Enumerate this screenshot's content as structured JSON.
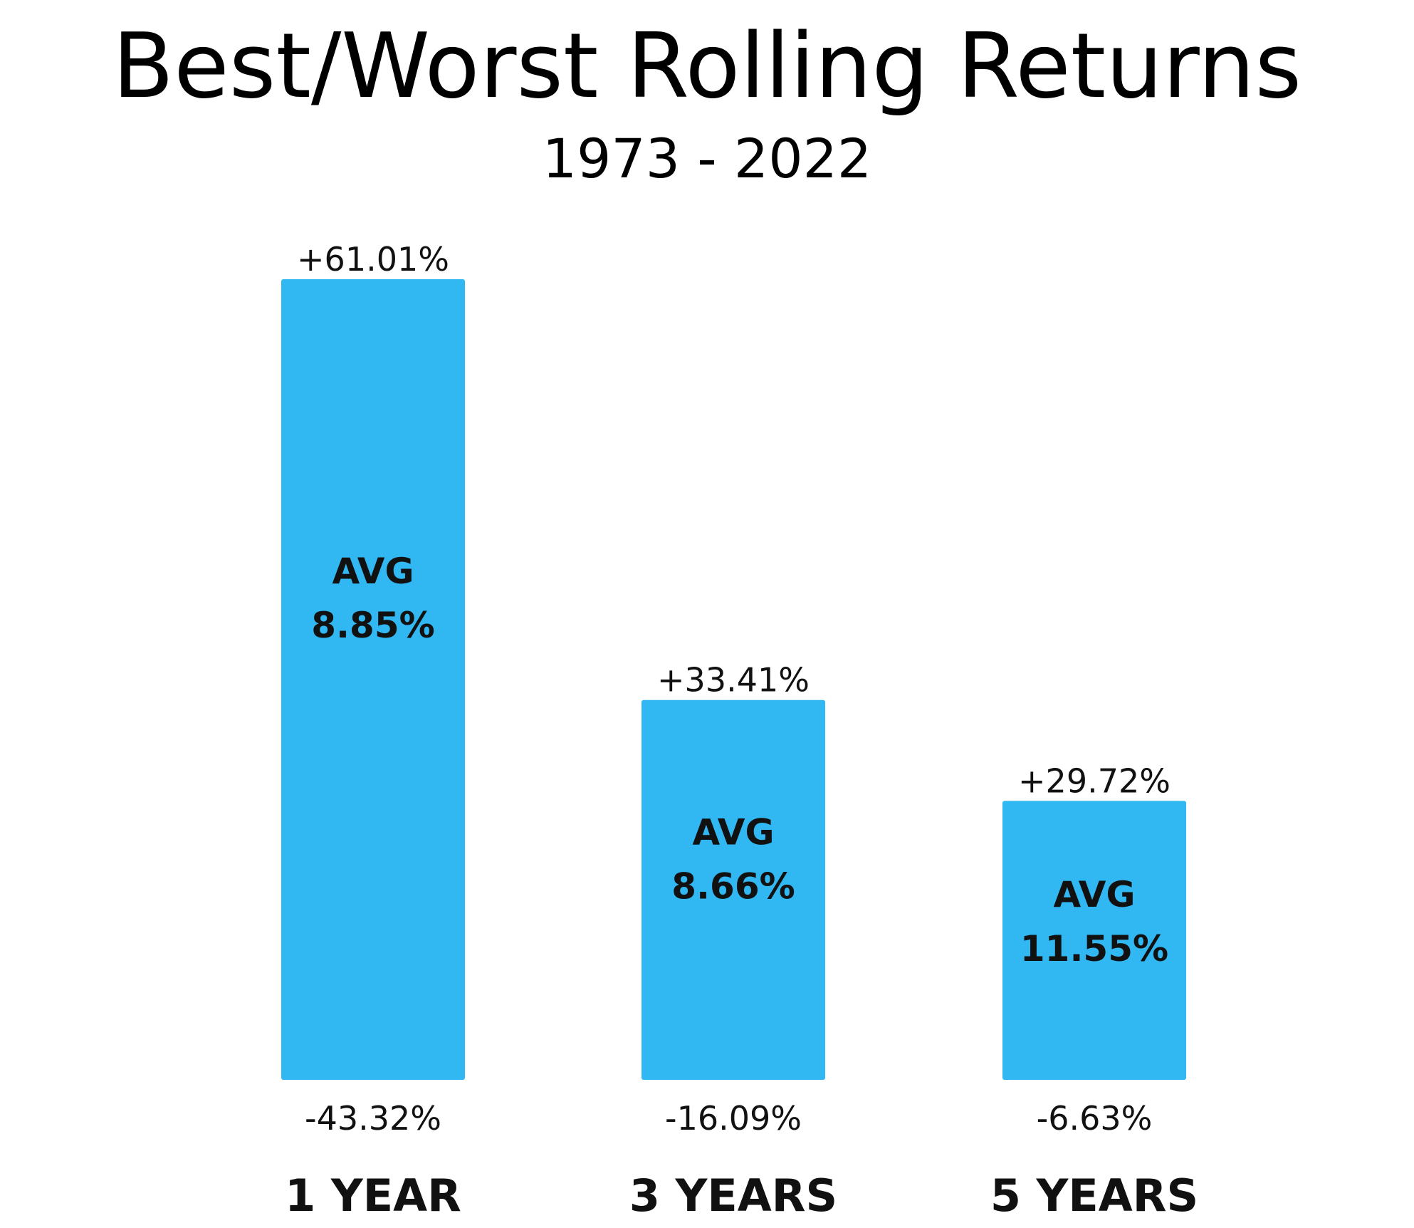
{
  "title": "Best/Worst Rolling Returns",
  "subtitle": "1973 - 2022",
  "chart_data": {
    "type": "bar",
    "title": "Best/Worst Rolling Returns",
    "subtitle": "1973 - 2022",
    "categories": [
      "1 YEAR",
      "3 YEARS",
      "5 YEARS"
    ],
    "series": [
      {
        "values": [
          61.01,
          33.41,
          29.72
        ]
      },
      {
        "values": [
          -43.32,
          -16.09,
          -6.63
        ]
      },
      {
        "values": [
          8.85,
          8.66,
          11.55
        ]
      }
    ],
    "best_labels": [
      "+61.01%",
      "+33.41%",
      "+29.72%"
    ],
    "worst_labels": [
      "-43.32%",
      "-16.09%",
      "-6.63%"
    ],
    "avg_word": "AVG",
    "avg_labels": [
      "8.85%",
      "8.66%",
      "11.55%"
    ],
    "bar_color": "#31B7F1",
    "grid": false,
    "legend": "none",
    "xlabel": "",
    "ylabel": ""
  }
}
